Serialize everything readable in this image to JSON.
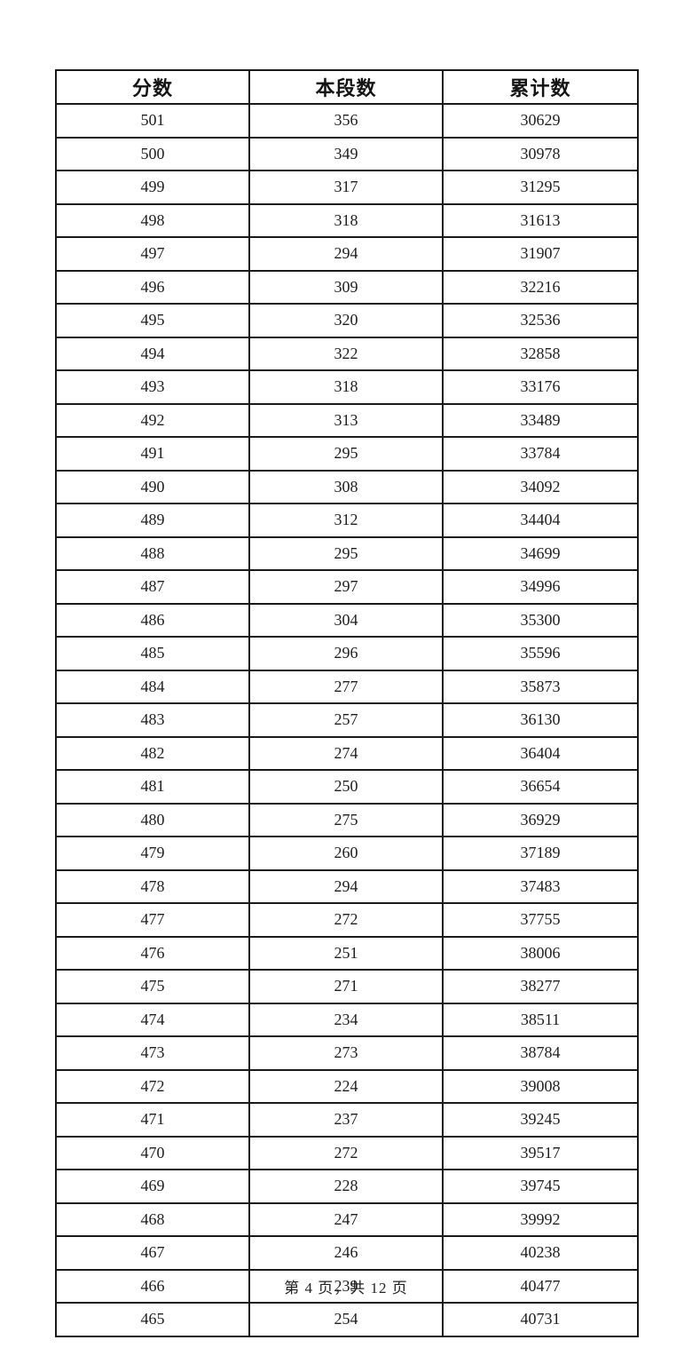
{
  "page": {
    "footer": "第 4 页，共 12 页"
  },
  "table": {
    "columns": [
      "分数",
      "本段数",
      "累计数"
    ],
    "rows": [
      [
        501,
        356,
        30629
      ],
      [
        500,
        349,
        30978
      ],
      [
        499,
        317,
        31295
      ],
      [
        498,
        318,
        31613
      ],
      [
        497,
        294,
        31907
      ],
      [
        496,
        309,
        32216
      ],
      [
        495,
        320,
        32536
      ],
      [
        494,
        322,
        32858
      ],
      [
        493,
        318,
        33176
      ],
      [
        492,
        313,
        33489
      ],
      [
        491,
        295,
        33784
      ],
      [
        490,
        308,
        34092
      ],
      [
        489,
        312,
        34404
      ],
      [
        488,
        295,
        34699
      ],
      [
        487,
        297,
        34996
      ],
      [
        486,
        304,
        35300
      ],
      [
        485,
        296,
        35596
      ],
      [
        484,
        277,
        35873
      ],
      [
        483,
        257,
        36130
      ],
      [
        482,
        274,
        36404
      ],
      [
        481,
        250,
        36654
      ],
      [
        480,
        275,
        36929
      ],
      [
        479,
        260,
        37189
      ],
      [
        478,
        294,
        37483
      ],
      [
        477,
        272,
        37755
      ],
      [
        476,
        251,
        38006
      ],
      [
        475,
        271,
        38277
      ],
      [
        474,
        234,
        38511
      ],
      [
        473,
        273,
        38784
      ],
      [
        472,
        224,
        39008
      ],
      [
        471,
        237,
        39245
      ],
      [
        470,
        272,
        39517
      ],
      [
        469,
        228,
        39745
      ],
      [
        468,
        247,
        39992
      ],
      [
        467,
        246,
        40238
      ],
      [
        466,
        239,
        40477
      ],
      [
        465,
        254,
        40731
      ]
    ]
  }
}
